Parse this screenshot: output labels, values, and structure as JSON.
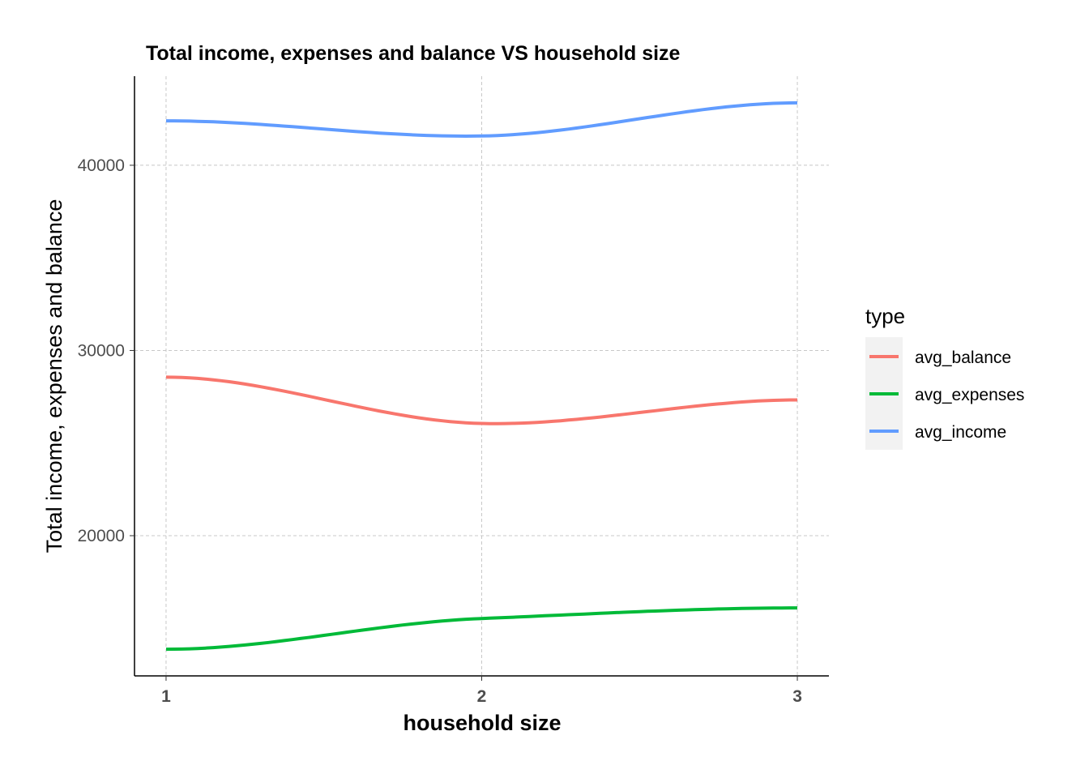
{
  "chart_data": {
    "type": "line",
    "title": "Total income, expenses and balance VS household size",
    "xlabel": "household size",
    "ylabel": "Total income, expenses and balance",
    "x": [
      1,
      2,
      3
    ],
    "xticks": [
      "1",
      "2",
      "3"
    ],
    "yticks": [
      20000,
      30000,
      40000
    ],
    "ytick_labels": [
      "20000",
      "30000",
      "40000"
    ],
    "xlim": [
      0.9,
      3.1
    ],
    "ylim": [
      12430,
      44810
    ],
    "grid": true,
    "legend": {
      "title": "type",
      "placement": "right"
    },
    "series": [
      {
        "name": "avg_balance",
        "color": "#F8766D",
        "values": [
          28560,
          26060,
          27330
        ]
      },
      {
        "name": "avg_expenses",
        "color": "#00BA38",
        "values": [
          13870,
          15530,
          16100
        ]
      },
      {
        "name": "avg_income",
        "color": "#619CFF",
        "values": [
          42400,
          41580,
          43370
        ]
      }
    ]
  }
}
